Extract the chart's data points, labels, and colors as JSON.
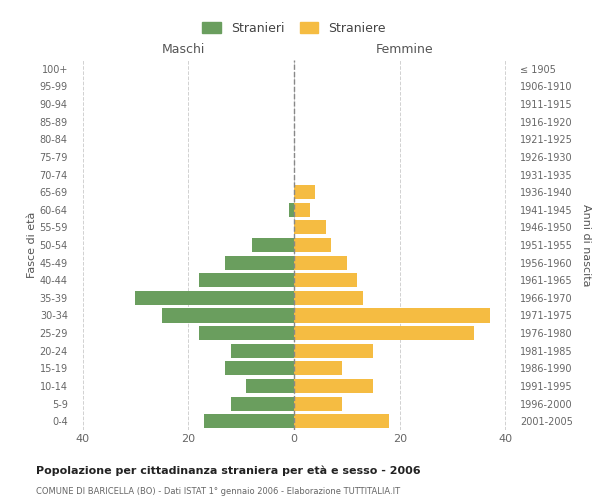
{
  "age_groups": [
    "0-4",
    "5-9",
    "10-14",
    "15-19",
    "20-24",
    "25-29",
    "30-34",
    "35-39",
    "40-44",
    "45-49",
    "50-54",
    "55-59",
    "60-64",
    "65-69",
    "70-74",
    "75-79",
    "80-84",
    "85-89",
    "90-94",
    "95-99",
    "100+"
  ],
  "birth_years": [
    "2001-2005",
    "1996-2000",
    "1991-1995",
    "1986-1990",
    "1981-1985",
    "1976-1980",
    "1971-1975",
    "1966-1970",
    "1961-1965",
    "1956-1960",
    "1951-1955",
    "1946-1950",
    "1941-1945",
    "1936-1940",
    "1931-1935",
    "1926-1930",
    "1921-1925",
    "1916-1920",
    "1911-1915",
    "1906-1910",
    "≤ 1905"
  ],
  "maschi": [
    17,
    12,
    9,
    13,
    12,
    18,
    25,
    30,
    18,
    13,
    8,
    0,
    1,
    0,
    0,
    0,
    0,
    0,
    0,
    0,
    0
  ],
  "femmine": [
    18,
    9,
    15,
    9,
    15,
    34,
    37,
    13,
    12,
    10,
    7,
    6,
    3,
    4,
    0,
    0,
    0,
    0,
    0,
    0,
    0
  ],
  "color_maschi": "#6a9e5e",
  "color_femmine": "#f5bc42",
  "grid_color": "#cccccc",
  "title": "Popolazione per cittadinanza straniera per età e sesso - 2006",
  "subtitle": "COMUNE DI BARICELLA (BO) - Dati ISTAT 1° gennaio 2006 - Elaborazione TUTTITALIA.IT",
  "xlabel_left": "Maschi",
  "xlabel_right": "Femmine",
  "ylabel_left": "Fasce di età",
  "ylabel_right": "Anni di nascita",
  "legend_maschi": "Stranieri",
  "legend_femmine": "Straniere",
  "xlim": 42
}
